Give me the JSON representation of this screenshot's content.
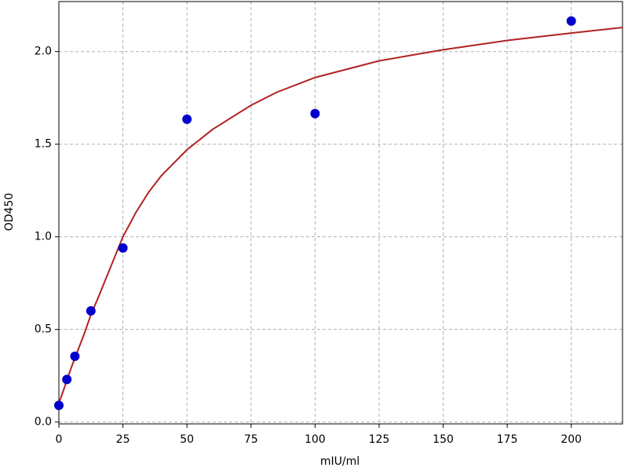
{
  "chart_data": {
    "type": "scatter",
    "xlabel": "mIU/ml",
    "ylabel": "OD450",
    "xlim": [
      0,
      220
    ],
    "ylim": [
      -0.01,
      2.27
    ],
    "xticks": [
      0,
      25,
      50,
      75,
      100,
      125,
      150,
      175,
      200
    ],
    "yticks": [
      {
        "value": 0,
        "label": "0.0"
      },
      0.5,
      {
        "value": 1,
        "label": "1.0"
      },
      1.5,
      {
        "value": 2,
        "label": "2.0"
      }
    ],
    "grid": true,
    "series": [
      {
        "style": "markers",
        "color": "#0000cc",
        "x": [
          0,
          3.125,
          6.25,
          12.5,
          25,
          50,
          100,
          200
        ],
        "values": [
          0.09,
          0.23,
          0.355,
          0.6,
          0.94,
          1.635,
          1.665,
          2.165
        ]
      },
      {
        "style": "line",
        "color": "#b22222",
        "x": [
          0,
          2.5,
          5,
          7.5,
          10,
          12.5,
          15,
          20,
          25,
          30,
          35,
          40,
          50,
          60,
          75,
          85,
          100,
          125,
          150,
          175,
          200,
          220
        ],
        "values": [
          0.1,
          0.2,
          0.3,
          0.39,
          0.48,
          0.58,
          0.66,
          0.83,
          1.0,
          1.13,
          1.24,
          1.33,
          1.47,
          1.58,
          1.71,
          1.78,
          1.86,
          1.95,
          2.01,
          2.06,
          2.1,
          2.13
        ]
      }
    ]
  }
}
